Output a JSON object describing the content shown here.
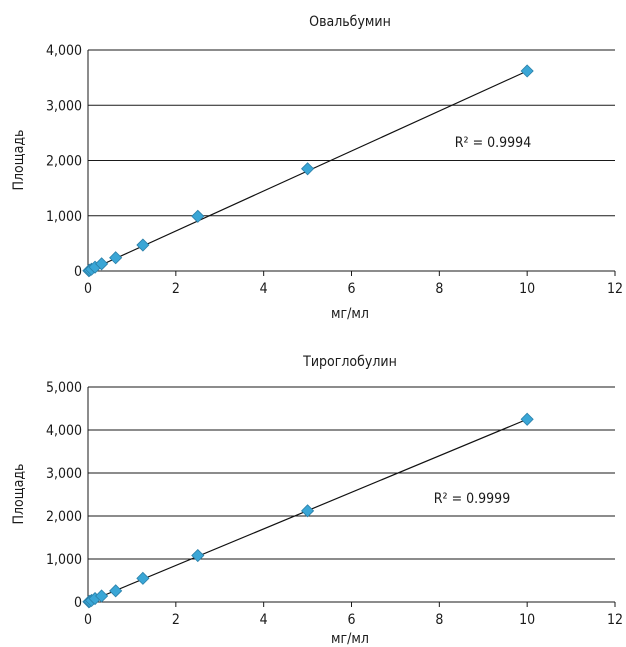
{
  "colors": {
    "marker": "#3aa6d6",
    "line": "#111111",
    "grid": "#1a1a1a"
  },
  "chart_data": [
    {
      "type": "scatter",
      "title": "Овальбумин",
      "xlabel": "мг/мл",
      "ylabel": "Площадь",
      "xlim": [
        0,
        12
      ],
      "ylim": [
        0,
        4000
      ],
      "xticks": [
        0,
        2,
        4,
        6,
        8,
        10,
        12
      ],
      "yticks": [
        0,
        1000,
        2000,
        3000,
        4000
      ],
      "ytick_labels": [
        "0",
        "1,000",
        "2,000",
        "3,000",
        "4,000"
      ],
      "grid": "horizontal",
      "x": [
        0.02,
        0.04,
        0.08,
        0.16,
        0.31,
        0.63,
        1.25,
        2.5,
        5.0,
        10.0
      ],
      "y": [
        5,
        15,
        32,
        70,
        130,
        240,
        470,
        990,
        1850,
        3620
      ],
      "trendline": {
        "type": "linear",
        "x": [
          0,
          10
        ],
        "y": [
          0,
          3620
        ]
      },
      "annotation": "R² = 0.9994"
    },
    {
      "type": "scatter",
      "title": "Тироглобулин",
      "xlabel": "мг/мл",
      "ylabel": "Площадь",
      "xlim": [
        0,
        12
      ],
      "ylim": [
        0,
        5000
      ],
      "xticks": [
        0,
        2,
        4,
        6,
        8,
        10,
        12
      ],
      "yticks": [
        0,
        1000,
        2000,
        3000,
        4000,
        5000
      ],
      "ytick_labels": [
        "0",
        "1,000",
        "2,000",
        "3,000",
        "4,000",
        "5,000"
      ],
      "grid": "horizontal",
      "x": [
        0.02,
        0.04,
        0.08,
        0.16,
        0.31,
        0.63,
        1.25,
        2.5,
        5.0,
        10.0
      ],
      "y": [
        5,
        15,
        35,
        80,
        140,
        260,
        550,
        1080,
        2120,
        4250
      ],
      "trendline": {
        "type": "linear",
        "x": [
          0,
          10
        ],
        "y": [
          0,
          4250
        ]
      },
      "annotation": "R² = 0.9999"
    }
  ]
}
